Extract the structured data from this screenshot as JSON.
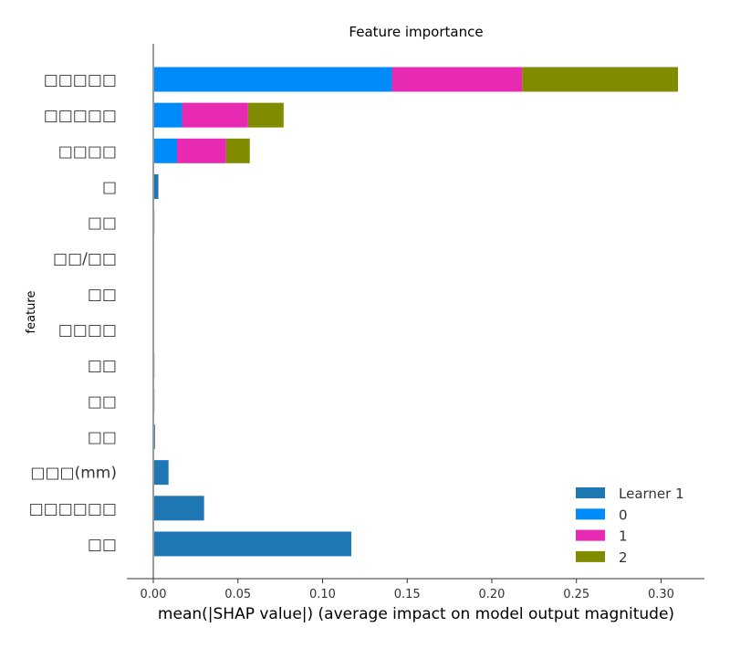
{
  "chart_data": {
    "type": "bar",
    "orientation": "horizontal",
    "stacked": true,
    "title": "Feature importance",
    "xlabel": "mean(|SHAP value|) (average impact on model output magnitude)",
    "ylabel": "feature",
    "xlim": [
      -0.016,
      0.325
    ],
    "xticks": [
      "0.00",
      "0.05",
      "0.10",
      "0.15",
      "0.20",
      "0.25",
      "0.30"
    ],
    "xtick_values": [
      0.0,
      0.05,
      0.1,
      0.15,
      0.2,
      0.25,
      0.3
    ],
    "grid": false,
    "legend_position": "bottom-right",
    "categories": [
      "□□□□□",
      "□□□□□",
      "□□□□",
      "□",
      "□□",
      "□□/□□",
      "□□",
      "□□□□",
      "□□",
      "□□",
      "□□",
      "□□□(mm)",
      "□□□□□□",
      "□□"
    ],
    "series": [
      {
        "name": "Learner 1",
        "color": "#1f77b4",
        "values": [
          0,
          0,
          0,
          0.003,
          0,
          0,
          0,
          0,
          0.0005,
          0.0005,
          0.001,
          0.009,
          0.03,
          0.117
        ]
      },
      {
        "name": "0",
        "color": "#008bfb",
        "values": [
          0.141,
          0.017,
          0.014,
          0,
          0,
          0,
          0,
          0,
          0,
          0,
          0,
          0,
          0,
          0
        ]
      },
      {
        "name": "1",
        "color": "#e72ab1",
        "values": [
          0.077,
          0.039,
          0.029,
          0,
          0.0005,
          0,
          0,
          0,
          0,
          0,
          0,
          0,
          0,
          0
        ]
      },
      {
        "name": "2",
        "color": "#808b00",
        "values": [
          0.092,
          0.021,
          0.014,
          0,
          0,
          0,
          0,
          0,
          0,
          0,
          0,
          0,
          0,
          0
        ]
      }
    ]
  }
}
